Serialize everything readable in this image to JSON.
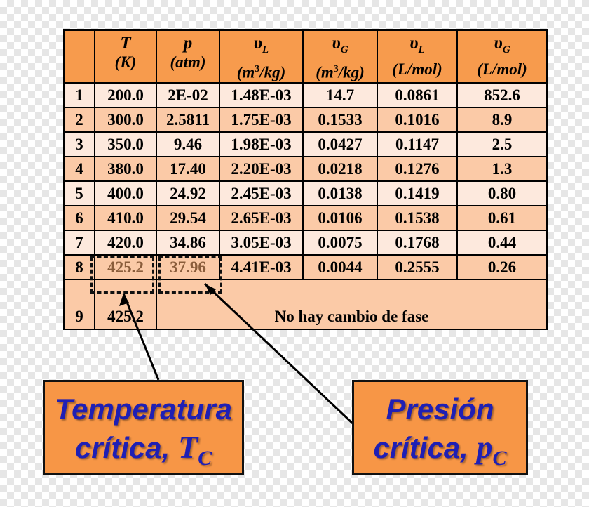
{
  "table": {
    "headers": [
      {
        "symbol": "",
        "symbol_sub": "",
        "unit": "",
        "unit_sup": "",
        "unit_rest": ""
      },
      {
        "symbol": "T",
        "symbol_sub": "",
        "unit": "(K)",
        "unit_sup": "",
        "unit_rest": ""
      },
      {
        "symbol": "p",
        "symbol_sub": "",
        "unit": "(atm)",
        "unit_sup": "",
        "unit_rest": ""
      },
      {
        "symbol": "υ",
        "symbol_sub": "L",
        "unit": "(m",
        "unit_sup": "3",
        "unit_rest": "/kg)"
      },
      {
        "symbol": "υ",
        "symbol_sub": "G",
        "unit": "(m",
        "unit_sup": "3",
        "unit_rest": "/kg)"
      },
      {
        "symbol": "υ",
        "symbol_sub": "L",
        "unit": "(L/mol)",
        "unit_sup": "",
        "unit_rest": ""
      },
      {
        "symbol": "υ",
        "symbol_sub": "G",
        "unit": "(L/mol)",
        "unit_sup": "",
        "unit_rest": ""
      }
    ],
    "rows": [
      [
        "1",
        "200.0",
        "2E-02",
        "1.48E-03",
        "14.7",
        "0.0861",
        "852.6"
      ],
      [
        "2",
        "300.0",
        "2.5811",
        "1.75E-03",
        "0.1533",
        "0.1016",
        "8.9"
      ],
      [
        "3",
        "350.0",
        "9.46",
        "1.98E-03",
        "0.0427",
        "0.1147",
        "2.5"
      ],
      [
        "4",
        "380.0",
        "17.40",
        "2.20E-03",
        "0.0218",
        "0.1276",
        "1.3"
      ],
      [
        "5",
        "400.0",
        "24.92",
        "2.45E-03",
        "0.0138",
        "0.1419",
        "0.80"
      ],
      [
        "6",
        "410.0",
        "29.54",
        "2.65E-03",
        "0.0106",
        "0.1538",
        "0.61"
      ],
      [
        "7",
        "420.0",
        "34.86",
        "3.05E-03",
        "0.0075",
        "0.1768",
        "0.44"
      ],
      [
        "8",
        "425.2",
        "37.96",
        "4.41E-03",
        "0.0044",
        "0.2555",
        "0.26"
      ]
    ],
    "last_row": {
      "index": "9",
      "temperature": "425.2",
      "note": "No hay cambio de fase"
    }
  },
  "callouts": {
    "temperature": {
      "line1": "Temperatura",
      "line2": "crítica, ",
      "symbol": "T",
      "sub": "C"
    },
    "pressure": {
      "line1": "Presión",
      "line2": "crítica, ",
      "symbol": "p",
      "sub": "C"
    }
  },
  "colors": {
    "header": "#f79b4d",
    "row_light": "#fde9dd",
    "row_dark": "#fbcaa7",
    "callout_fill": "#f79646",
    "callout_text": "#1f1fb4"
  }
}
